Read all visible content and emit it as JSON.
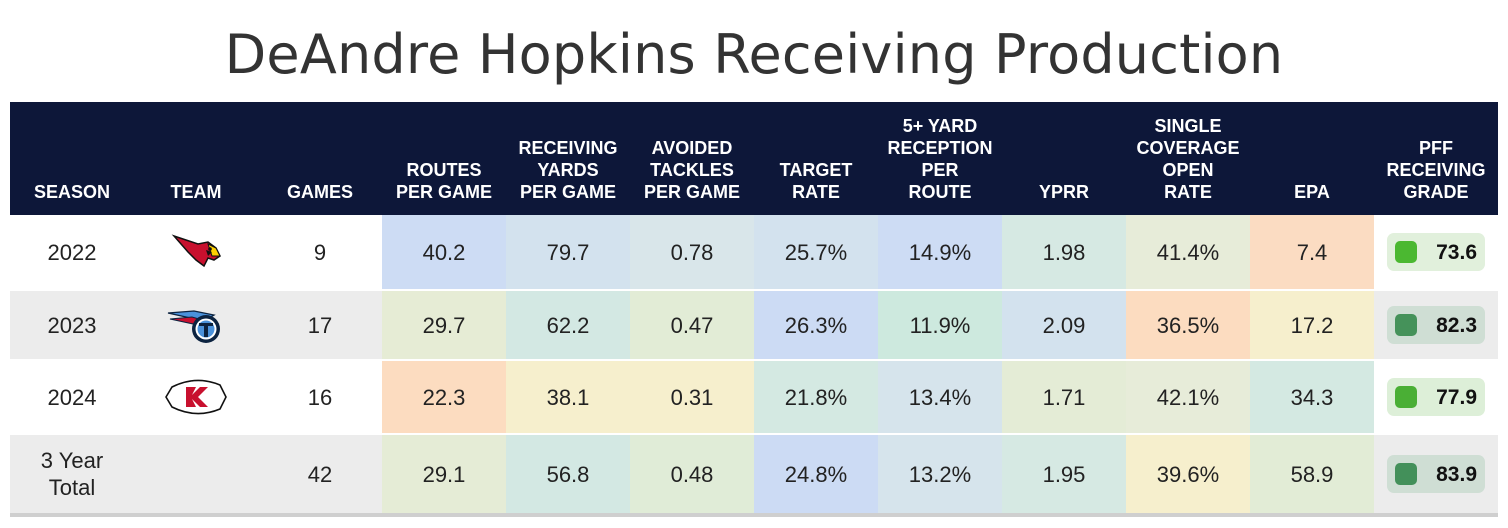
{
  "title": "DeAndre Hopkins Receiving Production",
  "columns": [
    "SEASON",
    "TEAM",
    "GAMES",
    "ROUTES\nPER GAME",
    "RECEIVING\nYARDS\nPER GAME",
    "AVOIDED\nTACKLES\nPER GAME",
    "TARGET\nRATE",
    "5+ YARD\nRECEPTION\nPER\nROUTE",
    "YPRR",
    "SINGLE\nCOVERAGE\nOPEN\nRATE",
    "EPA",
    "PFF\nRECEIVING\nGRADE"
  ],
  "rows": [
    {
      "season": "2022",
      "team_icon": "arizona-cardinals-logo-icon",
      "games": "9",
      "metrics": [
        "40.2",
        "79.7",
        "0.78",
        "25.7%",
        "14.9%",
        "1.98",
        "41.4%",
        "7.4"
      ],
      "metric_colors": [
        "#cddcf4",
        "#d3e2ee",
        "#d9e6ea",
        "#d3e2ee",
        "#cddcf4",
        "#d6e9e3",
        "#e7ecd9",
        "#fbdcc2"
      ],
      "grade": "73.6",
      "grade_bg": "#e1f0dc",
      "grade_box": "#4bb831"
    },
    {
      "season": "2023",
      "team_icon": "tennessee-titans-logo-icon",
      "games": "17",
      "metrics": [
        "29.7",
        "62.2",
        "0.47",
        "26.3%",
        "11.9%",
        "2.09",
        "36.5%",
        "17.2"
      ],
      "metric_colors": [
        "#e6ecd5",
        "#d3e8e3",
        "#e2ecd6",
        "#ccdbf4",
        "#cde9de",
        "#d3e2ee",
        "#fcdcc0",
        "#f6efcd"
      ],
      "grade": "82.3",
      "grade_bg": "#cfded4",
      "grade_box": "#45925a"
    },
    {
      "season": "2024",
      "team_icon": "kansas-city-chiefs-logo-icon",
      "games": "16",
      "metrics": [
        "22.3",
        "38.1",
        "0.31",
        "21.8%",
        "13.4%",
        "1.71",
        "42.1%",
        "34.3"
      ],
      "metric_colors": [
        "#fcdcc0",
        "#f6efcd",
        "#f6efcd",
        "#d4e9e2",
        "#d6e4ec",
        "#e4ecd6",
        "#e7ecd9",
        "#d4e9e2"
      ],
      "grade": "77.9",
      "grade_bg": "#ddefd8",
      "grade_box": "#4aaf35"
    },
    {
      "season": "3 Year\nTotal",
      "team_icon": "",
      "games": "42",
      "metrics": [
        "29.1",
        "56.8",
        "0.48",
        "24.8%",
        "13.2%",
        "1.95",
        "39.6%",
        "58.9"
      ],
      "metric_colors": [
        "#e5ecd6",
        "#d3e8e3",
        "#e0ecd7",
        "#ccdbf4",
        "#d6e4ec",
        "#d6e9e3",
        "#f6efcd",
        "#e2ecd6"
      ],
      "grade": "83.9",
      "grade_bg": "#cfded4",
      "grade_box": "#43905a"
    }
  ]
}
